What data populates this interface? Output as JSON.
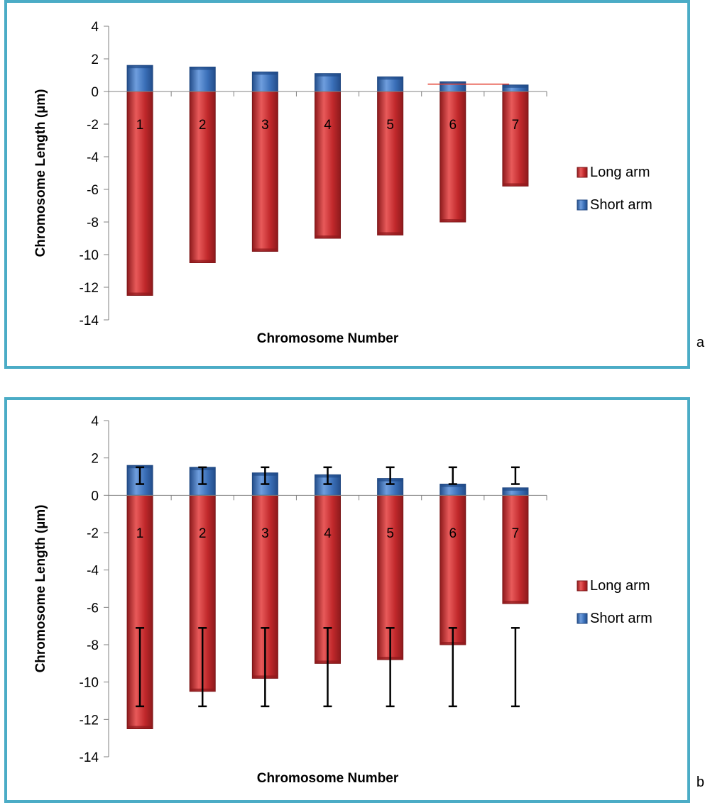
{
  "chart_data": [
    {
      "type": "bar",
      "panel_label": "a",
      "categories": [
        "1",
        "2",
        "3",
        "4",
        "5",
        "6",
        "7"
      ],
      "series": [
        {
          "name": "Long arm",
          "values": [
            -12.5,
            -10.5,
            -9.8,
            -9.0,
            -8.8,
            -8.0,
            -5.8
          ],
          "color": "#c0282b"
        },
        {
          "name": "Short arm",
          "values": [
            1.6,
            1.5,
            1.2,
            1.1,
            0.9,
            0.6,
            0.4
          ],
          "color": "#3a6fb8"
        }
      ],
      "xlabel": "Chromosome Number",
      "ylabel": "Chromosome Length (µm)",
      "ylim": [
        -14,
        4
      ],
      "yticks": [
        4,
        2,
        0,
        -2,
        -4,
        -6,
        -8,
        -10,
        -12,
        -14
      ],
      "legend": [
        "Long arm",
        "Short arm"
      ],
      "legend_position": "right",
      "annotation_line": {
        "x_from": 5.6,
        "x_to": 6.9,
        "y_from": 0.45,
        "y_to": 0.45,
        "color": "#e23b2e"
      },
      "error_bars": []
    },
    {
      "type": "bar",
      "panel_label": "b",
      "categories": [
        "1",
        "2",
        "3",
        "4",
        "5",
        "6",
        "7"
      ],
      "series": [
        {
          "name": "Long arm",
          "values": [
            -12.5,
            -10.5,
            -9.8,
            -9.0,
            -8.8,
            -8.0,
            -5.8
          ],
          "color": "#c0282b"
        },
        {
          "name": "Short arm",
          "values": [
            1.6,
            1.5,
            1.2,
            1.1,
            0.9,
            0.6,
            0.4
          ],
          "color": "#3a6fb8"
        }
      ],
      "xlabel": "Chromosome Number",
      "ylabel": "Chromosome Length (µm)",
      "ylim": [
        -14,
        4
      ],
      "yticks": [
        4,
        2,
        0,
        -2,
        -4,
        -6,
        -8,
        -10,
        -12,
        -14
      ],
      "legend": [
        "Long arm",
        "Short arm"
      ],
      "legend_position": "right",
      "annotation_line": null,
      "error_bars": [
        {
          "low": 0.6,
          "high": 1.5
        },
        {
          "low": -11.3,
          "high": -7.1
        }
      ]
    }
  ],
  "colors": {
    "frame": "#4bacc6",
    "axis": "#808080",
    "long_arm": "#c0282b",
    "short_arm": "#3a6fb8"
  }
}
